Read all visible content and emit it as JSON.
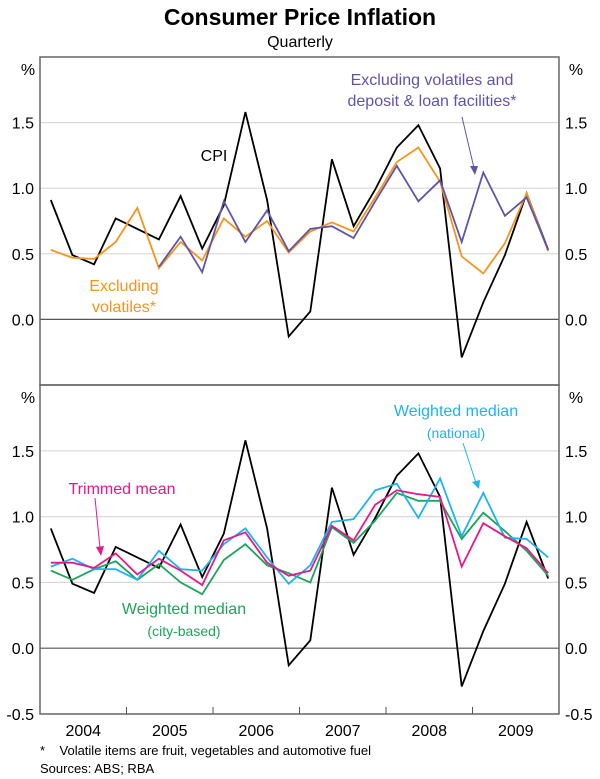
{
  "chart_data": {
    "type": "line",
    "title": "Consumer Price Inflation",
    "subtitle": "Quarterly",
    "x": [
      "Mar-2004",
      "Jun-2004",
      "Sep-2004",
      "Dec-2004",
      "Mar-2005",
      "Jun-2005",
      "Sep-2005",
      "Dec-2005",
      "Mar-2006",
      "Jun-2006",
      "Sep-2006",
      "Dec-2006",
      "Mar-2007",
      "Jun-2007",
      "Sep-2007",
      "Dec-2007",
      "Mar-2008",
      "Jun-2008",
      "Sep-2008",
      "Dec-2008",
      "Mar-2009",
      "Jun-2009",
      "Sep-2009",
      "Dec-2009"
    ],
    "year_labels": [
      "2004",
      "2005",
      "2006",
      "2007",
      "2008",
      "2009"
    ],
    "unit_label": "%",
    "panels": [
      {
        "name": "top",
        "ylim": [
          -0.5,
          2.0
        ],
        "yticks": [
          "1.5",
          "1.0",
          "0.5",
          "0.0"
        ],
        "ytick_values": [
          1.5,
          1.0,
          0.5,
          0.0
        ],
        "series": [
          {
            "name": "CPI",
            "color": "#000000",
            "values": [
              0.91,
              0.49,
              0.42,
              0.77,
              0.69,
              0.61,
              0.94,
              0.54,
              0.87,
              1.58,
              0.91,
              -0.13,
              0.06,
              1.22,
              0.71,
              0.99,
              1.31,
              1.48,
              1.15,
              -0.29,
              0.13,
              0.49,
              0.96,
              0.53
            ]
          },
          {
            "name": "Excluding volatiles*",
            "color": "#F7941D",
            "values": [
              0.53,
              0.47,
              0.46,
              0.59,
              0.85,
              0.39,
              0.59,
              0.45,
              0.77,
              0.63,
              0.75,
              0.51,
              0.67,
              0.74,
              0.67,
              0.93,
              1.2,
              1.31,
              1.05,
              0.48,
              0.35,
              0.58,
              0.96,
              0.52
            ]
          },
          {
            "name": "Excluding volatiles and deposit & loan facilities*",
            "color": "#5F55A8",
            "values": [
              null,
              null,
              null,
              null,
              null,
              0.4,
              0.63,
              0.36,
              0.9,
              0.59,
              0.83,
              0.52,
              0.69,
              0.71,
              0.62,
              0.9,
              1.17,
              0.9,
              1.06,
              0.59,
              1.12,
              0.79,
              0.93,
              0.53
            ]
          }
        ],
        "annotations": [
          {
            "text": "CPI",
            "color": "#000000"
          },
          {
            "text_lines": [
              "Excluding",
              "volatiles*"
            ],
            "color": "#F7941D"
          },
          {
            "text_lines": [
              "Excluding volatiles and",
              "deposit & loan facilities*"
            ],
            "color": "#5F55A8"
          }
        ]
      },
      {
        "name": "bottom",
        "ylim": [
          -0.5,
          2.0
        ],
        "yticks": [
          "1.5",
          "1.0",
          "0.5",
          "0.0",
          "-0.5"
        ],
        "ytick_values": [
          1.5,
          1.0,
          0.5,
          0.0,
          -0.5
        ],
        "series": [
          {
            "name": "CPI",
            "color": "#000000",
            "values": [
              0.91,
              0.49,
              0.42,
              0.77,
              0.69,
              0.61,
              0.94,
              0.54,
              0.87,
              1.58,
              0.91,
              -0.13,
              0.06,
              1.22,
              0.71,
              0.99,
              1.31,
              1.48,
              1.15,
              -0.29,
              0.13,
              0.49,
              0.96,
              0.53
            ]
          },
          {
            "name": "Weighted median (city-based)",
            "color": "#1AA55A",
            "values": [
              0.59,
              0.52,
              0.6,
              0.66,
              0.52,
              0.64,
              0.5,
              0.41,
              0.67,
              0.79,
              0.63,
              0.57,
              0.5,
              0.92,
              0.8,
              0.97,
              1.18,
              1.12,
              1.12,
              0.83,
              1.03,
              0.89,
              0.74,
              0.55
            ]
          },
          {
            "name": "Weighted median (national)",
            "color": "#1EB4EB",
            "values": [
              0.62,
              0.68,
              0.6,
              0.6,
              0.52,
              0.74,
              0.6,
              0.59,
              0.79,
              0.91,
              0.69,
              0.49,
              0.63,
              0.96,
              0.98,
              1.2,
              1.25,
              0.99,
              1.29,
              0.85,
              1.18,
              0.84,
              0.83,
              0.69
            ]
          },
          {
            "name": "Trimmed mean",
            "color": "#E6198C",
            "values": [
              0.65,
              0.65,
              0.61,
              0.72,
              0.56,
              0.68,
              0.59,
              0.48,
              0.82,
              0.88,
              0.65,
              0.55,
              0.59,
              0.93,
              0.82,
              1.09,
              1.2,
              1.17,
              1.15,
              0.62,
              0.95,
              0.85,
              0.76,
              0.57
            ]
          }
        ],
        "annotations": [
          {
            "text": "Trimmed mean",
            "color": "#E6198C"
          },
          {
            "text_lines": [
              "Weighted median",
              "(city-based)"
            ],
            "color": "#1AA55A"
          },
          {
            "text_lines": [
              "Weighted median",
              "(national)"
            ],
            "color": "#1EB4EB"
          }
        ]
      }
    ],
    "grid": true,
    "legend": "inline annotations",
    "footnotes": [
      "*    Volatile items are fruit, vegetables and automotive fuel",
      "Sources: ABS; RBA"
    ]
  }
}
